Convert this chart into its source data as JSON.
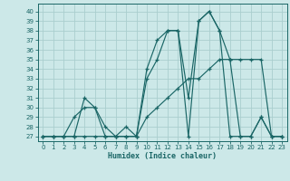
{
  "xlabel": "Humidex (Indice chaleur)",
  "bg_color": "#cce8e8",
  "grid_color": "#aacece",
  "line_color": "#1a6666",
  "xlim": [
    -0.5,
    23.5
  ],
  "ylim": [
    26.5,
    40.8
  ],
  "yticks": [
    27,
    28,
    29,
    30,
    31,
    32,
    33,
    34,
    35,
    36,
    37,
    38,
    39,
    40
  ],
  "xticks": [
    0,
    1,
    2,
    3,
    4,
    5,
    6,
    7,
    8,
    9,
    10,
    11,
    12,
    13,
    14,
    15,
    16,
    17,
    18,
    19,
    20,
    21,
    22,
    23
  ],
  "series1_y": [
    27,
    27,
    27,
    27,
    31,
    30,
    27,
    27,
    28,
    27,
    34,
    37,
    38,
    38,
    31,
    39,
    40,
    38,
    27,
    27,
    27,
    29,
    27,
    27
  ],
  "series2_y": [
    27,
    27,
    27,
    29,
    30,
    30,
    28,
    27,
    27,
    27,
    33,
    35,
    38,
    38,
    27,
    39,
    40,
    38,
    35,
    27,
    27,
    29,
    27,
    27
  ],
  "series3_y": [
    27,
    27,
    27,
    27,
    27,
    27,
    27,
    27,
    27,
    27,
    29,
    30,
    31,
    32,
    33,
    33,
    34,
    35,
    35,
    35,
    35,
    35,
    27,
    27
  ]
}
